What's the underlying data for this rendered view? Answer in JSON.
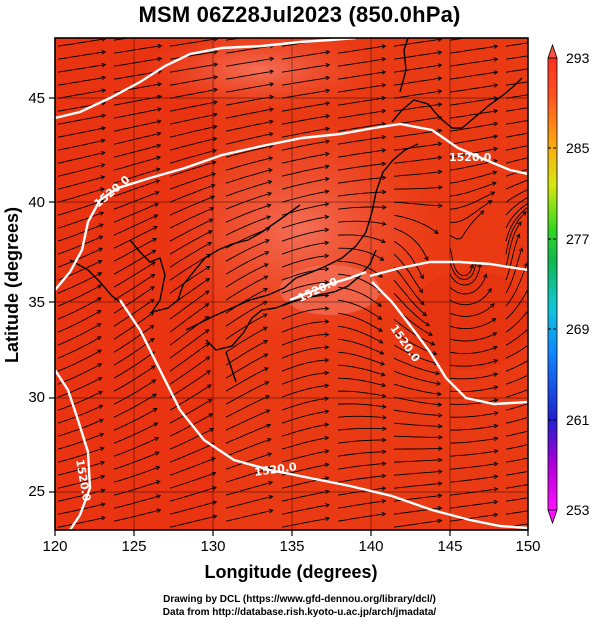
{
  "title": "MSM 06Z28Jul2023 (850.0hPa)",
  "xaxis": {
    "label": "Longitude (degrees)",
    "range": [
      120,
      150
    ],
    "ticks": [
      "120",
      "125",
      "130",
      "135",
      "140",
      "145",
      "150"
    ]
  },
  "yaxis": {
    "label": "Latitude  (degrees)",
    "range": [
      22.5,
      48
    ],
    "ticks": [
      "25",
      "30",
      "35",
      "40",
      "45"
    ]
  },
  "colorbar": {
    "range": [
      253,
      293
    ],
    "ticks": [
      "293",
      "285",
      "277",
      "269",
      "261",
      "253"
    ]
  },
  "contour_labels": [
    "1520.0",
    "1520.0",
    "1520.0",
    "1520.0",
    "1520.0",
    "1520.0"
  ],
  "credits": [
    "Drawing by DCL (https://www.gfd-dennou.org/library/dcl/)",
    "Data from http://database.rish.kyoto-u.ac.jp/arch/jmadata/"
  ],
  "colors": {
    "field_dark": "#e83010",
    "field_mid": "#f05028",
    "field_light": "#f47058",
    "contour": "#ffffff",
    "streamline": "#000000"
  }
}
